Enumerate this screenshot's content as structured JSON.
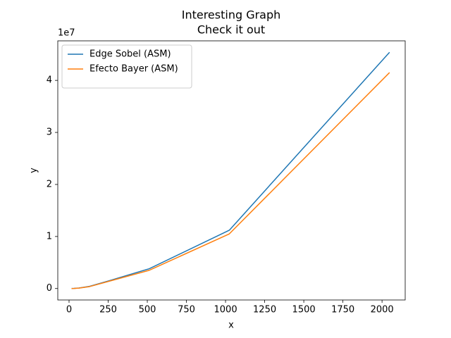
{
  "chart_data": {
    "type": "line",
    "title": "Interesting Graph",
    "subtitle": "Check it out",
    "x_label": "x",
    "y_label": "y",
    "y_offset_label": "1e7",
    "x": [
      16,
      32,
      64,
      128,
      256,
      512,
      1024,
      2048
    ],
    "series": [
      {
        "name": "Edge Sobel (ASM)",
        "color": "#1f77b4",
        "values": [
          0.001,
          0.003,
          0.01,
          0.04,
          0.15,
          0.38,
          1.12,
          4.54
        ]
      },
      {
        "name": "Efecto Bayer (ASM)",
        "color": "#ff7f0e",
        "values": [
          0.0005,
          0.002,
          0.009,
          0.035,
          0.14,
          0.35,
          1.05,
          4.15
        ]
      }
    ],
    "xlim": [
      -72,
      2148
    ],
    "ylim": [
      -0.22,
      4.76
    ],
    "xticks": [
      0,
      250,
      500,
      750,
      1000,
      1250,
      1500,
      1750,
      2000
    ],
    "yticks": [
      0,
      1,
      2,
      3,
      4
    ],
    "grid": false,
    "legend": "upper left"
  }
}
